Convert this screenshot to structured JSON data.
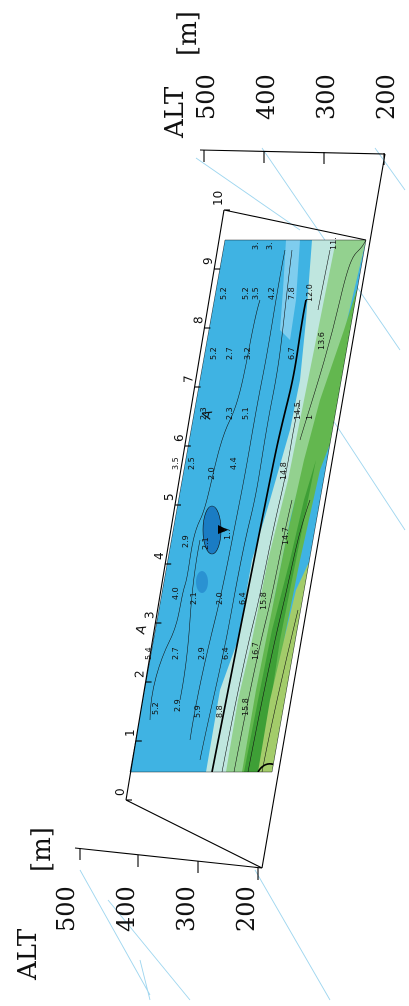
{
  "axes": {
    "left": {
      "title": "ALT",
      "unit": "[m]",
      "ticks": [
        "500",
        "400",
        "300",
        "200"
      ]
    },
    "right": {
      "title": "ALT",
      "unit": "[m]",
      "ticks": [
        "500",
        "400",
        "300",
        "200"
      ]
    }
  },
  "distance_ticks": [
    "0",
    "1",
    "2",
    "3",
    "4",
    "5",
    "6",
    "7",
    "8",
    "9",
    "10"
  ],
  "section_letters": [
    "A",
    "A"
  ],
  "contour_labels": {
    "left_end": [
      "5.2",
      "5.4",
      "2.9",
      "2.7",
      "5.9",
      "2.9",
      "8.8",
      "6.4",
      "15.8",
      "16.7",
      "4.0",
      "2.1",
      "2.0",
      "6.4",
      "15.8"
    ],
    "middle": [
      "2.9",
      "2.1",
      "1.7",
      "3.5",
      "2.5",
      "2.0",
      "4.4",
      "2.3",
      "2.3",
      "5.1",
      "5.2",
      "2.7",
      "3.2",
      "14.8",
      "14.7",
      "5.2"
    ],
    "right_end": [
      "5.2",
      "3.5",
      "4.2",
      "7.8",
      "12.0",
      "13.6",
      "6.7",
      "14.5",
      "3.",
      "3.",
      "11.",
      "1"
    ]
  },
  "colors": {
    "water_deep": "#1a7cc4",
    "water": "#3fb3e3",
    "water_light": "#7fcdee",
    "transition": "#bfe6df",
    "green_light": "#93d18f",
    "green": "#63b74f",
    "green_dark": "#3e9f36",
    "yellow_green": "#a3cc6a",
    "guide_line": "#9fd6ef"
  }
}
